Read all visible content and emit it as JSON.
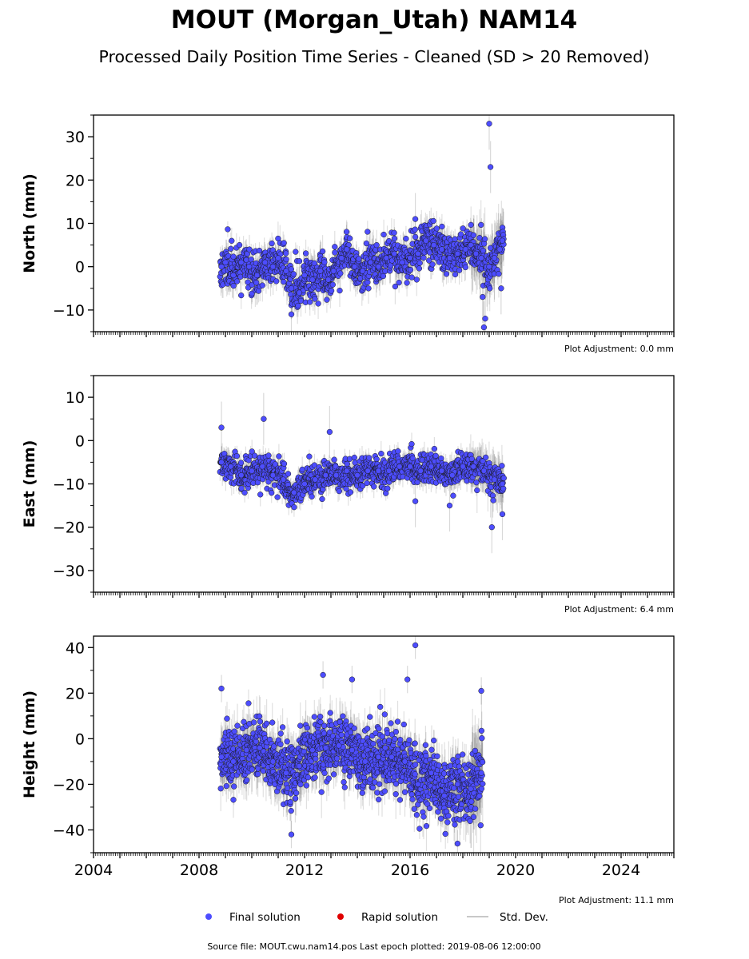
{
  "title": "MOUT (Morgan_Utah) NAM14",
  "subtitle": "Processed Daily Position Time Series - Cleaned (SD > 20 Removed)",
  "colors": {
    "final": "#4d4dff",
    "rapid": "#e00000",
    "stddev": "#c8c8c8",
    "marker_edge": "#1a1a1a"
  },
  "legend": {
    "final": "Final solution",
    "rapid": "Rapid solution",
    "stddev": "Std. Dev."
  },
  "footer": "Source file: MOUT.cwu.nam14.pos  Last epoch plotted: 2019-08-06 12:00:00",
  "chart_data": [
    {
      "type": "scatter",
      "ylabel": "North (mm)",
      "adjustment": "Plot Adjustment: 0.0 mm",
      "xlim": [
        2004,
        2026
      ],
      "ylim": [
        -15,
        35
      ],
      "yticks": [
        -10,
        0,
        10,
        20,
        30
      ],
      "yticklabels": [
        "−10",
        "0",
        "10",
        "20",
        "30"
      ],
      "series": [
        {
          "x": [
            2008.85,
            2009.0,
            2009.3,
            2009.6,
            2009.9,
            2010.2,
            2010.5,
            2010.8,
            2011.0,
            2011.3,
            2011.5,
            2011.8,
            2012.0,
            2012.3,
            2012.6,
            2012.9,
            2013.1,
            2013.4,
            2013.6,
            2013.9,
            2014.2,
            2014.5,
            2014.8,
            2015.1,
            2015.4,
            2015.7,
            2016.0,
            2016.3,
            2016.6,
            2016.9,
            2017.2,
            2017.5,
            2017.8,
            2018.1,
            2018.3,
            2018.5,
            2018.7,
            2018.9,
            2019.0,
            2019.2,
            2019.4,
            2019.5
          ],
          "y": [
            0,
            1,
            -2,
            1,
            0,
            -2,
            1,
            0,
            2,
            -1,
            -5,
            -6,
            -2,
            -3,
            -1,
            -3,
            -1,
            2,
            4,
            0,
            -1,
            1,
            0,
            2,
            3,
            1,
            2,
            3,
            6,
            5,
            4,
            2,
            3,
            4,
            5,
            3,
            2,
            0,
            0,
            2,
            4,
            6
          ]
        }
      ],
      "outliers": {
        "x": [
          2011.5,
          2018.85,
          2018.8,
          2018.75,
          2019.0,
          2019.05,
          2019.45,
          2016.2
        ],
        "y": [
          -11,
          -12,
          -14,
          -7,
          33,
          23,
          -5,
          11
        ]
      },
      "x_start": 2008.8,
      "x_end": 2019.55,
      "y_center": 0.5,
      "y_spread": 3.2,
      "n": 1100,
      "seed": 11
    },
    {
      "type": "scatter",
      "ylabel": "East (mm)",
      "adjustment": "Plot Adjustment: 6.4 mm",
      "xlim": [
        2004,
        2026
      ],
      "ylim": [
        -35,
        15
      ],
      "yticks": [
        -30,
        -20,
        -10,
        0,
        10
      ],
      "yticklabels": [
        "−30",
        "−20",
        "−10",
        "0",
        "10"
      ],
      "series": [
        {
          "x": [
            2008.85,
            2009.2,
            2009.6,
            2010.0,
            2010.4,
            2010.8,
            2011.2,
            2011.6,
            2012.0,
            2012.4,
            2012.8,
            2013.2,
            2013.6,
            2014.0,
            2014.4,
            2014.8,
            2015.2,
            2015.6,
            2016.0,
            2016.4,
            2016.8,
            2017.2,
            2017.6,
            2018.0,
            2018.4,
            2018.8,
            2019.2,
            2019.5
          ],
          "y": [
            -5,
            -6,
            -8,
            -7,
            -6,
            -8,
            -9,
            -12,
            -10,
            -9,
            -8,
            -8,
            -7,
            -8,
            -7,
            -7,
            -7,
            -6,
            -6,
            -7,
            -6,
            -7,
            -8,
            -6,
            -6,
            -7,
            -9,
            -10
          ]
        }
      ],
      "outliers": {
        "x": [
          2008.85,
          2010.45,
          2012.95,
          2016.2,
          2017.5,
          2019.1,
          2019.5
        ],
        "y": [
          3,
          5,
          2,
          -14,
          -15,
          -20,
          -17
        ]
      },
      "x_start": 2008.8,
      "x_end": 2019.55,
      "y_center": -7.5,
      "y_spread": 2.3,
      "n": 1100,
      "seed": 23
    },
    {
      "type": "scatter",
      "ylabel": "Height (mm)",
      "adjustment": "Plot Adjustment: 11.1 mm",
      "xlim": [
        2004,
        2026
      ],
      "ylim": [
        -50,
        45
      ],
      "yticks": [
        -40,
        -20,
        0,
        20,
        40
      ],
      "yticklabels": [
        "−40",
        "−20",
        "0",
        "20",
        "40"
      ],
      "xticks": [
        2004,
        2008,
        2012,
        2016,
        2020,
        2024
      ],
      "xticklabels": [
        "2004",
        "2008",
        "2012",
        "2016",
        "2020",
        "2024"
      ],
      "series": [
        {
          "x": [
            2008.85,
            2009.3,
            2009.8,
            2010.3,
            2010.8,
            2011.3,
            2011.8,
            2012.3,
            2012.8,
            2013.3,
            2013.8,
            2014.3,
            2014.8,
            2015.3,
            2015.8,
            2016.3,
            2016.8,
            2017.3,
            2017.8,
            2018.3,
            2018.7
          ],
          "y": [
            -8,
            -10,
            -5,
            -4,
            -10,
            -15,
            -12,
            -5,
            -4,
            -3,
            -5,
            -10,
            -8,
            -8,
            -10,
            -20,
            -15,
            -25,
            -20,
            -22,
            -15
          ]
        }
      ],
      "outliers": {
        "x": [
          2016.2,
          2015.9,
          2008.85,
          2012.7,
          2013.8,
          2018.7,
          2011.5,
          2017.8
        ],
        "y": [
          41,
          26,
          22,
          28,
          26,
          21,
          -42,
          -46
        ]
      },
      "x_start": 2008.8,
      "x_end": 2018.75,
      "y_center": -10,
      "y_spread": 9,
      "n": 1300,
      "seed": 37
    }
  ]
}
